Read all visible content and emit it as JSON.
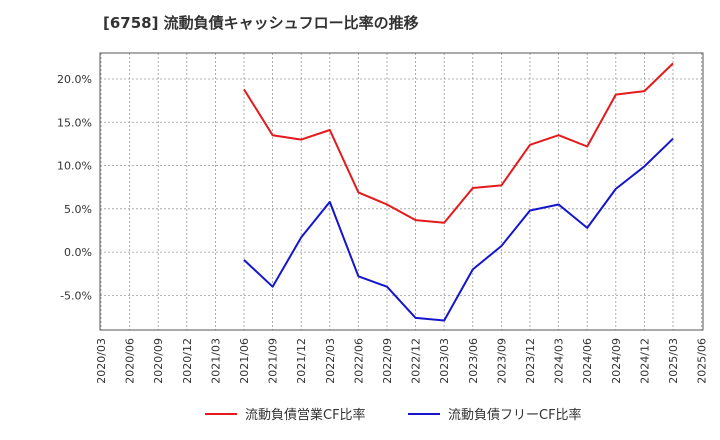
{
  "chart_data": {
    "type": "line",
    "title": "[6758]  流動負債キャッシュフロー比率の推移",
    "x": [
      "2020/03",
      "2020/06",
      "2020/09",
      "2020/12",
      "2021/03",
      "2021/06",
      "2021/09",
      "2021/12",
      "2022/03",
      "2022/06",
      "2022/09",
      "2022/12",
      "2023/03",
      "2023/06",
      "2023/09",
      "2023/12",
      "2024/03",
      "2024/06",
      "2024/09",
      "2024/12",
      "2025/03",
      "2025/06"
    ],
    "yticks": [
      "20.0%",
      "15.0%",
      "10.0%",
      "5.0%",
      "0.0%",
      "-5.0%"
    ],
    "ytick_values": [
      20,
      15,
      10,
      5,
      0,
      -5
    ],
    "ylim": [
      -9,
      23
    ],
    "grid": true,
    "series": [
      {
        "name": "流動負債営業CF比率",
        "color": "#e41a1c",
        "values": [
          null,
          null,
          null,
          null,
          null,
          18.8,
          13.5,
          13.0,
          14.1,
          6.9,
          5.5,
          3.7,
          3.4,
          7.4,
          7.7,
          12.4,
          13.5,
          12.2,
          18.2,
          18.6,
          21.8,
          null
        ]
      },
      {
        "name": "流動負債フリーCF比率",
        "color": "#1515cc",
        "values": [
          null,
          null,
          null,
          null,
          null,
          -0.9,
          -4.0,
          1.7,
          5.8,
          -2.8,
          -4.0,
          -7.6,
          -7.9,
          -2.0,
          0.7,
          4.8,
          5.5,
          2.8,
          7.3,
          9.9,
          13.1,
          null
        ]
      }
    ]
  }
}
